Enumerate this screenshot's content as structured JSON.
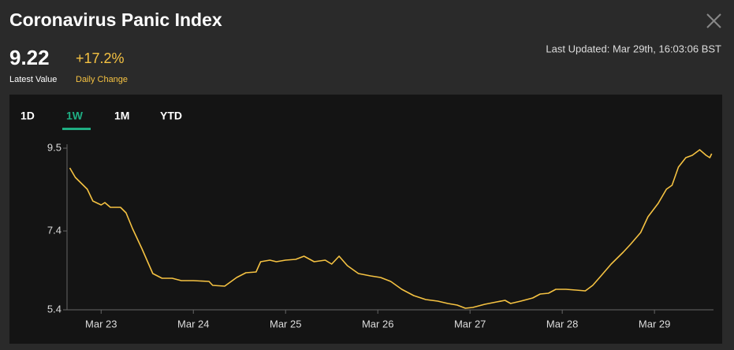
{
  "header": {
    "title": "Coronavirus Panic Index",
    "latest_value": "9.22",
    "latest_value_label": "Latest Value",
    "daily_change": "+17.2%",
    "daily_change_label": "Daily Change",
    "last_updated": "Last Updated: Mar 29th, 16:03:06 BST"
  },
  "tabs": {
    "items": [
      "1D",
      "1W",
      "1M",
      "YTD"
    ],
    "active": 1
  },
  "chart_data": {
    "type": "line",
    "x": [
      22.66,
      22.72,
      22.85,
      22.91,
      23.0,
      23.04,
      23.1,
      23.21,
      23.27,
      23.34,
      23.44,
      23.56,
      23.66,
      23.77,
      23.87,
      24.0,
      24.17,
      24.21,
      24.34,
      24.47,
      24.57,
      24.68,
      24.73,
      24.83,
      24.9,
      25.0,
      25.11,
      25.2,
      25.31,
      25.43,
      25.5,
      25.58,
      25.67,
      25.79,
      25.92,
      26.03,
      26.14,
      26.26,
      26.39,
      26.52,
      26.65,
      26.76,
      26.86,
      26.95,
      27.03,
      27.16,
      27.29,
      27.38,
      27.44,
      27.55,
      27.68,
      27.76,
      27.85,
      27.93,
      28.04,
      28.15,
      28.25,
      28.33,
      28.42,
      28.53,
      28.66,
      28.74,
      28.85,
      28.93,
      29.04,
      29.13,
      29.19,
      29.26,
      29.34,
      29.41,
      29.49,
      29.56,
      29.6,
      29.62
    ],
    "series": [
      {
        "color": "#f5c242",
        "values": [
          9.0,
          8.76,
          8.46,
          8.16,
          8.06,
          8.12,
          8.0,
          8.0,
          7.86,
          7.46,
          6.96,
          6.32,
          6.2,
          6.2,
          6.14,
          6.14,
          6.12,
          6.02,
          6.0,
          6.22,
          6.34,
          6.36,
          6.62,
          6.66,
          6.62,
          6.66,
          6.68,
          6.76,
          6.62,
          6.66,
          6.56,
          6.76,
          6.52,
          6.32,
          6.26,
          6.22,
          6.12,
          5.92,
          5.76,
          5.66,
          5.62,
          5.56,
          5.52,
          5.44,
          5.46,
          5.54,
          5.6,
          5.64,
          5.56,
          5.62,
          5.7,
          5.8,
          5.82,
          5.92,
          5.92,
          5.9,
          5.88,
          6.02,
          6.26,
          6.56,
          6.86,
          7.06,
          7.36,
          7.76,
          8.1,
          8.46,
          8.56,
          9.02,
          9.26,
          9.32,
          9.46,
          9.32,
          9.26,
          9.36
        ]
      }
    ],
    "xlim": [
      22.63,
      29.64
    ],
    "xticks": [
      {
        "value": 23,
        "label": "Mar 23"
      },
      {
        "value": 24,
        "label": "Mar 24"
      },
      {
        "value": 25,
        "label": "Mar 25"
      },
      {
        "value": 26,
        "label": "Mar 26"
      },
      {
        "value": 27,
        "label": "Mar 27"
      },
      {
        "value": 28,
        "label": "Mar 28"
      },
      {
        "value": 29,
        "label": "Mar 29"
      }
    ],
    "ylim": [
      5.4,
      9.6
    ],
    "yticks": [
      5.4,
      7.4,
      9.5
    ]
  }
}
